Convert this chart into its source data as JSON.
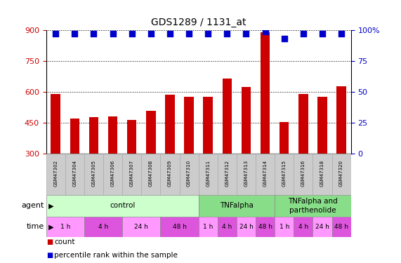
{
  "title": "GDS1289 / 1131_at",
  "samples": [
    "GSM47302",
    "GSM47304",
    "GSM47305",
    "GSM47306",
    "GSM47307",
    "GSM47308",
    "GSM47309",
    "GSM47310",
    "GSM47311",
    "GSM47312",
    "GSM47313",
    "GSM47314",
    "GSM47315",
    "GSM47316",
    "GSM47318",
    "GSM47320"
  ],
  "counts": [
    590,
    470,
    480,
    483,
    466,
    510,
    587,
    577,
    578,
    665,
    625,
    890,
    455,
    590,
    578,
    628
  ],
  "percentiles": [
    97,
    97,
    97,
    97,
    97,
    97,
    97,
    97,
    97,
    97,
    97,
    99,
    93,
    97,
    97,
    97
  ],
  "bar_color": "#cc0000",
  "dot_color": "#0000cc",
  "ymin": 300,
  "ymax": 900,
  "yticks": [
    300,
    450,
    600,
    750,
    900
  ],
  "y2min": 0,
  "y2max": 100,
  "y2ticks": [
    0,
    25,
    50,
    75,
    100
  ],
  "y2labels": [
    "0",
    "25",
    "50",
    "75",
    "100%"
  ],
  "agent_groups": [
    {
      "label": "control",
      "start": 0,
      "end": 8,
      "color": "#ccffcc"
    },
    {
      "label": "TNFalpha",
      "start": 8,
      "end": 12,
      "color": "#88dd88"
    },
    {
      "label": "TNFalpha and\nparthenolide",
      "start": 12,
      "end": 16,
      "color": "#88dd88"
    }
  ],
  "time_groups": [
    {
      "label": "1 h",
      "start": 0,
      "end": 2,
      "color": "#ff99ff"
    },
    {
      "label": "4 h",
      "start": 2,
      "end": 4,
      "color": "#dd55dd"
    },
    {
      "label": "24 h",
      "start": 4,
      "end": 6,
      "color": "#ff99ff"
    },
    {
      "label": "48 h",
      "start": 6,
      "end": 8,
      "color": "#dd55dd"
    },
    {
      "label": "1 h",
      "start": 8,
      "end": 9,
      "color": "#ff99ff"
    },
    {
      "label": "4 h",
      "start": 9,
      "end": 10,
      "color": "#dd55dd"
    },
    {
      "label": "24 h",
      "start": 10,
      "end": 11,
      "color": "#ff99ff"
    },
    {
      "label": "48 h",
      "start": 11,
      "end": 12,
      "color": "#dd55dd"
    },
    {
      "label": "1 h",
      "start": 12,
      "end": 13,
      "color": "#ff99ff"
    },
    {
      "label": "4 h",
      "start": 13,
      "end": 14,
      "color": "#dd55dd"
    },
    {
      "label": "24 h",
      "start": 14,
      "end": 15,
      "color": "#ff99ff"
    },
    {
      "label": "48 h",
      "start": 15,
      "end": 16,
      "color": "#dd55dd"
    }
  ],
  "sample_band_color": "#cccccc",
  "sample_band_edge": "#aaaaaa",
  "legend_count_color": "#cc0000",
  "legend_dot_color": "#0000cc"
}
